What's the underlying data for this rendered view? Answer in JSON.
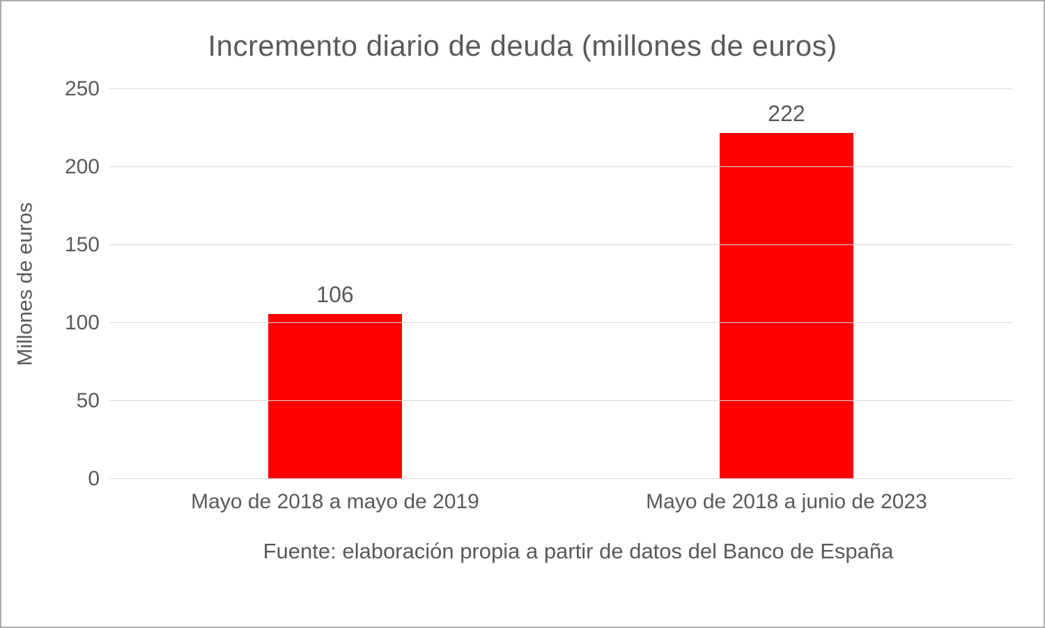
{
  "chart_data": {
    "type": "bar",
    "title": "Incremento diario de deuda (millones de euros)",
    "ylabel": "Millones de euros",
    "xlabel": "",
    "categories": [
      "Mayo de 2018 a mayo de 2019",
      "Mayo de 2018 a junio de 2023"
    ],
    "values": [
      106,
      222
    ],
    "ylim": [
      0,
      250
    ],
    "yticks": [
      0,
      50,
      100,
      150,
      200,
      250
    ],
    "grid": true,
    "legend_position": "none",
    "bar_color": "#ff0000",
    "source": "Fuente: elaboración propia a partir de datos del Banco de España"
  },
  "colors": {
    "text": "#595959",
    "gridline": "#d9d9d9",
    "border": "#ababab",
    "background": "#ffffff"
  }
}
